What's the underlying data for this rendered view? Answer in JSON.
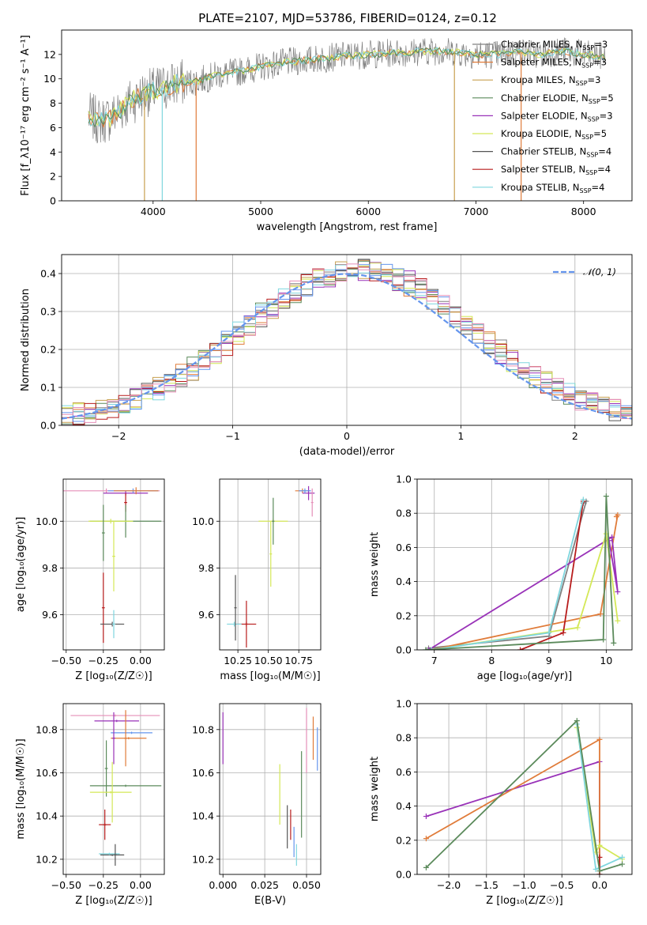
{
  "figure": {
    "title": "PLATE=2107, MJD=53786, FIBERID=0124, z=0.12"
  },
  "colors": {
    "chabrier_miles": "#808080",
    "salpeter_miles": "#e07b39",
    "kroupa_miles": "#c8a050",
    "chabrier_elodie": "#5b8a5b",
    "salpeter_elodie": "#9932b8",
    "kroupa_elodie": "#d4e857",
    "chabrier_stelib": "#555555",
    "salpeter_stelib": "#b81c1c",
    "kroupa_stelib": "#7fd6de",
    "blue": "#6495ed",
    "pink": "#e58fb8"
  },
  "chart_data": [
    {
      "id": "spectrum",
      "type": "line",
      "xlabel": "wavelength [Angstrom, rest frame]",
      "ylabel": "Flux [f_λ10⁻¹⁷ erg cm⁻² s⁻¹ A⁻¹]",
      "xlim": [
        3150,
        8450
      ],
      "ylim": [
        0,
        14
      ],
      "xticks": [
        4000,
        5000,
        6000,
        7000,
        8000
      ],
      "yticks": [
        0,
        2,
        4,
        6,
        8,
        10,
        12
      ],
      "x_range": [
        3400,
        8200
      ],
      "anchor_x": [
        3400,
        3500,
        3600,
        3700,
        3800,
        3900,
        4000,
        4100,
        4200,
        4300,
        4400,
        4600,
        4800,
        5000,
        5200,
        5400,
        5600,
        5800,
        6000,
        6200,
        6400,
        6600,
        6800,
        7000,
        7200,
        7400,
        7600,
        7800,
        8000,
        8200
      ],
      "anchor_y": [
        7.0,
        6.5,
        6.8,
        7.5,
        8.2,
        8.7,
        9.0,
        9.3,
        9.6,
        9.7,
        9.8,
        10.3,
        10.6,
        11.0,
        11.3,
        11.5,
        11.7,
        11.9,
        12.0,
        12.1,
        12.2,
        12.3,
        12.2,
        12.0,
        12.0,
        12.2,
        12.0,
        12.3,
        12.0,
        11.8
      ],
      "legend": [
        {
          "label": "Chabrier MILES, N",
          "sub": "SSP",
          "eq": "=3",
          "color": "#808080"
        },
        {
          "label": "Salpeter MILES, N",
          "sub": "SSP",
          "eq": "=3",
          "color": "#e07b39"
        },
        {
          "label": "Kroupa MILES, N",
          "sub": "SSP",
          "eq": "=3",
          "color": "#c8a050"
        },
        {
          "label": "Chabrier ELODIE, N",
          "sub": "SSP",
          "eq": "=5",
          "color": "#5b8a5b"
        },
        {
          "label": "Salpeter ELODIE, N",
          "sub": "SSP",
          "eq": "=3",
          "color": "#9932b8"
        },
        {
          "label": "Kroupa ELODIE, N",
          "sub": "SSP",
          "eq": "=5",
          "color": "#d4e857"
        },
        {
          "label": "Chabrier STELIB, N",
          "sub": "SSP",
          "eq": "=4",
          "color": "#555555"
        },
        {
          "label": "Salpeter STELIB, N",
          "sub": "SSP",
          "eq": "=4",
          "color": "#b81c1c"
        },
        {
          "label": "Kroupa STELIB, N",
          "sub": "SSP",
          "eq": "=4",
          "color": "#7fd6de"
        }
      ],
      "spikes": [
        {
          "x": 3920,
          "color": "#c8a050"
        },
        {
          "x": 4085,
          "color": "#7fd6de"
        },
        {
          "x": 4400,
          "color": "#e07b39"
        },
        {
          "x": 6800,
          "color": "#c8a050"
        },
        {
          "x": 7420,
          "color": "#e07b39"
        }
      ]
    },
    {
      "id": "residuals",
      "type": "line",
      "xlabel": "(data-model)/error",
      "ylabel": "Normed distribution",
      "xlim": [
        -2.5,
        2.5
      ],
      "ylim": [
        0,
        0.45
      ],
      "xticks": [
        -2,
        -1,
        0,
        1,
        2
      ],
      "yticks": [
        0.0,
        0.1,
        0.2,
        0.3,
        0.4
      ],
      "legend": [
        {
          "label": "𝒩(0, 1)",
          "color": "#6495ed"
        }
      ],
      "bin_width": 0.1,
      "series_colors": [
        "#808080",
        "#e07b39",
        "#c8a050",
        "#5b8a5b",
        "#9932b8",
        "#d4e857",
        "#555555",
        "#b81c1c",
        "#7fd6de",
        "#6495ed",
        "#e58fb8"
      ]
    },
    {
      "id": "age_vs_Z",
      "type": "scatter",
      "xlabel": "Z [log₁₀(Z/Z☉)]",
      "ylabel": "age  [log₁₀(age/yr)]",
      "xlim": [
        -0.52,
        0.16
      ],
      "ylim": [
        9.45,
        10.18
      ],
      "xticks": [
        -0.5,
        -0.25,
        0.0
      ],
      "ytick_values": [
        9.6,
        9.8,
        10.0
      ],
      "points": [
        {
          "x": -0.23,
          "y": 10.13,
          "xerr": 0.36,
          "yerr": 0.01,
          "color": "#e58fb8"
        },
        {
          "x": -0.1,
          "y": 10.12,
          "xerr": 0.15,
          "yerr": 0.01,
          "color": "#9932b8"
        },
        {
          "x": -0.05,
          "y": 10.13,
          "xerr": 0.17,
          "yerr": 0.01,
          "color": "#6495ed"
        },
        {
          "x": -0.03,
          "y": 10.13,
          "xerr": 0.15,
          "yerr": 0.015,
          "color": "#e07b39"
        },
        {
          "x": -0.1,
          "y": 10.08,
          "xerr": 0.01,
          "yerr": 0.04,
          "color": "#b81c1c"
        },
        {
          "x": -0.1,
          "y": 10.0,
          "xerr": 0.24,
          "yerr": 0.07,
          "color": "#5b8a5b"
        },
        {
          "x": -0.2,
          "y": 10.0,
          "xerr": 0.15,
          "yerr": 0.01,
          "color": "#d4e857"
        },
        {
          "x": -0.25,
          "y": 9.95,
          "xerr": 0.01,
          "yerr": 0.12,
          "color": "#5b8a5b"
        },
        {
          "x": -0.18,
          "y": 9.85,
          "xerr": 0.01,
          "yerr": 0.15,
          "color": "#d4e857"
        },
        {
          "x": -0.25,
          "y": 9.63,
          "xerr": 0.01,
          "yerr": 0.15,
          "color": "#b81c1c"
        },
        {
          "x": -0.19,
          "y": 9.56,
          "xerr": 0.08,
          "yerr": 0.01,
          "color": "#555555"
        },
        {
          "x": -0.18,
          "y": 9.56,
          "xerr": 0.01,
          "yerr": 0.06,
          "color": "#7fd6de"
        }
      ]
    },
    {
      "id": "age_vs_mass",
      "type": "scatter",
      "xlabel": "mass [log₁₀(M/M☉)]",
      "ylabel": "",
      "xlim": [
        10.1,
        10.93
      ],
      "ylim": [
        9.45,
        10.18
      ],
      "xticks": [
        10.25,
        10.5,
        10.75
      ],
      "ytick_values": [
        9.6,
        9.8,
        10.0
      ],
      "points": [
        {
          "x": 10.78,
          "y": 10.13,
          "xerr": 0.06,
          "yerr": 0.01,
          "color": "#e07b39"
        },
        {
          "x": 10.83,
          "y": 10.12,
          "xerr": 0.05,
          "yerr": 0.03,
          "color": "#9932b8"
        },
        {
          "x": 10.86,
          "y": 10.08,
          "xerr": 0.01,
          "yerr": 0.06,
          "color": "#e58fb8"
        },
        {
          "x": 10.8,
          "y": 10.13,
          "xerr": 0.05,
          "yerr": 0.01,
          "color": "#6495ed"
        },
        {
          "x": 10.54,
          "y": 10.0,
          "xerr": 0.12,
          "yerr": 0.01,
          "color": "#d4e857"
        },
        {
          "x": 10.54,
          "y": 10.0,
          "xerr": 0.01,
          "yerr": 0.1,
          "color": "#5b8a5b"
        },
        {
          "x": 10.52,
          "y": 9.86,
          "xerr": 0.01,
          "yerr": 0.14,
          "color": "#d4e857"
        },
        {
          "x": 10.32,
          "y": 9.56,
          "xerr": 0.08,
          "yerr": 0.01,
          "color": "#b81c1c"
        },
        {
          "x": 10.32,
          "y": 9.56,
          "xerr": 0.01,
          "yerr": 0.1,
          "color": "#b81c1c"
        },
        {
          "x": 10.22,
          "y": 9.56,
          "xerr": 0.06,
          "yerr": 0.01,
          "color": "#7fd6de"
        },
        {
          "x": 10.23,
          "y": 9.63,
          "xerr": 0.01,
          "yerr": 0.14,
          "color": "#555555"
        }
      ]
    },
    {
      "id": "mw_vs_age",
      "type": "line",
      "xlabel": "age  [log₁₀(age/yr)]",
      "ylabel": "mass weight",
      "xlim": [
        6.7,
        10.45
      ],
      "ylim": [
        0,
        1
      ],
      "xticks": [
        7,
        8,
        9,
        10
      ],
      "yticks": [
        0.0,
        0.2,
        0.4,
        0.6,
        0.8,
        1.0
      ],
      "series": [
        {
          "name": "Chabrier MILES",
          "color": "#808080",
          "x": [
            6.9,
            9.0,
            9.65,
            9.6
          ],
          "y": [
            0.01,
            0.08,
            0.87,
            0.86
          ]
        },
        {
          "name": "Salpeter MILES",
          "color": "#e07b39",
          "x": [
            6.95,
            9.9,
            10.2,
            10.18
          ],
          "y": [
            0.0,
            0.21,
            0.79,
            0.78
          ]
        },
        {
          "name": "Salpeter ELODIE",
          "color": "#9932b8",
          "x": [
            6.9,
            10.1,
            10.2,
            10.05
          ],
          "y": [
            0.0,
            0.66,
            0.34,
            0.64
          ]
        },
        {
          "name": "Kroupa ELODIE",
          "color": "#d4e857",
          "x": [
            6.95,
            9.5,
            10.0,
            10.2
          ],
          "y": [
            0.0,
            0.13,
            0.68,
            0.17
          ]
        },
        {
          "name": "Salpeter STELIB",
          "color": "#b81c1c",
          "x": [
            8.5,
            9.25,
            9.6
          ],
          "y": [
            0.0,
            0.1,
            0.87
          ]
        },
        {
          "name": "Kroupa STELIB",
          "color": "#7fd6de",
          "x": [
            6.95,
            9.0,
            9.6
          ],
          "y": [
            0.0,
            0.1,
            0.88
          ]
        },
        {
          "name": "Chabrier ELODIE",
          "color": "#5b8a5b",
          "x": [
            6.85,
            9.95,
            10.0,
            10.13
          ],
          "y": [
            0.0,
            0.06,
            0.9,
            0.04
          ]
        }
      ]
    },
    {
      "id": "mass_vs_Z",
      "type": "scatter",
      "xlabel": "Z [log₁₀(Z/Z☉)]",
      "ylabel": "mass [log₁₀(M/M☉)]",
      "xlim": [
        -0.52,
        0.16
      ],
      "ylim": [
        10.13,
        10.92
      ],
      "xticks": [
        -0.5,
        -0.25,
        0.0
      ],
      "ytick_values": [
        10.2,
        10.4,
        10.6,
        10.8
      ],
      "points": [
        {
          "x": -0.17,
          "y": 10.865,
          "xerr": 0.3,
          "yerr": 0.005,
          "color": "#e58fb8"
        },
        {
          "x": -0.16,
          "y": 10.84,
          "xerr": 0.15,
          "yerr": 0.005,
          "color": "#9932b8"
        },
        {
          "x": -0.06,
          "y": 10.785,
          "xerr": 0.14,
          "yerr": 0.005,
          "color": "#6495ed"
        },
        {
          "x": -0.08,
          "y": 10.76,
          "xerr": 0.12,
          "yerr": 0.005,
          "color": "#e07b39"
        },
        {
          "x": -0.18,
          "y": 10.76,
          "xerr": 0.01,
          "yerr": 0.12,
          "color": "#9932b8"
        },
        {
          "x": -0.1,
          "y": 10.76,
          "xerr": 0.01,
          "yerr": 0.13,
          "color": "#e07b39"
        },
        {
          "x": -0.1,
          "y": 10.54,
          "xerr": 0.24,
          "yerr": 0.005,
          "color": "#5b8a5b"
        },
        {
          "x": -0.23,
          "y": 10.62,
          "xerr": 0.01,
          "yerr": 0.13,
          "color": "#5b8a5b"
        },
        {
          "x": -0.2,
          "y": 10.51,
          "xerr": 0.14,
          "yerr": 0.005,
          "color": "#d4e857"
        },
        {
          "x": -0.19,
          "y": 10.51,
          "xerr": 0.01,
          "yerr": 0.14,
          "color": "#d4e857"
        },
        {
          "x": -0.24,
          "y": 10.36,
          "xerr": 0.04,
          "yerr": 0.005,
          "color": "#b81c1c"
        },
        {
          "x": -0.24,
          "y": 10.36,
          "xerr": 0.01,
          "yerr": 0.07,
          "color": "#b81c1c"
        },
        {
          "x": -0.19,
          "y": 10.22,
          "xerr": 0.08,
          "yerr": 0.005,
          "color": "#555555"
        },
        {
          "x": -0.21,
          "y": 10.225,
          "xerr": 0.07,
          "yerr": 0.005,
          "color": "#7fd6de"
        },
        {
          "x": -0.17,
          "y": 10.22,
          "xerr": 0.01,
          "yerr": 0.05,
          "color": "#555555"
        }
      ]
    },
    {
      "id": "mass_vs_EBV",
      "type": "scatter",
      "xlabel": "E(B-V)",
      "ylabel": "",
      "xlim": [
        -0.002,
        0.0585
      ],
      "ylim": [
        10.13,
        10.92
      ],
      "xticks": [
        0.0,
        0.025,
        0.05
      ],
      "xtick_labels": [
        "0.000",
        "0.025",
        "0.050"
      ],
      "ytick_values": [
        10.2,
        10.4,
        10.6,
        10.8
      ],
      "points": [
        {
          "x": 0.0,
          "y": 10.76,
          "xerr": 0.0,
          "yerr": 0.12,
          "color": "#9932b8"
        },
        {
          "x": 0.034,
          "y": 10.5,
          "xerr": 0.0,
          "yerr": 0.14,
          "color": "#d4e857"
        },
        {
          "x": 0.0385,
          "y": 10.35,
          "xerr": 0.0,
          "yerr": 0.1,
          "color": "#555555"
        },
        {
          "x": 0.0405,
          "y": 10.36,
          "xerr": 0.0,
          "yerr": 0.07,
          "color": "#b81c1c"
        },
        {
          "x": 0.0425,
          "y": 10.28,
          "xerr": 0.0,
          "yerr": 0.07,
          "color": "#6495ed"
        },
        {
          "x": 0.044,
          "y": 10.22,
          "xerr": 0.0,
          "yerr": 0.05,
          "color": "#7fd6de"
        },
        {
          "x": 0.047,
          "y": 10.5,
          "xerr": 0.0,
          "yerr": 0.2,
          "color": "#5b8a5b"
        },
        {
          "x": 0.05,
          "y": 10.75,
          "xerr": 0.0,
          "yerr": 0.15,
          "color": "#e58fb8"
        },
        {
          "x": 0.054,
          "y": 10.76,
          "xerr": 0.0,
          "yerr": 0.1,
          "color": "#e07b39"
        },
        {
          "x": 0.0565,
          "y": 10.71,
          "xerr": 0.0,
          "yerr": 0.1,
          "color": "#6495ed"
        }
      ]
    },
    {
      "id": "mw_vs_Z",
      "type": "line",
      "xlabel": "Z [log₁₀(Z/Z☉)]",
      "ylabel": "mass weight",
      "xlim": [
        -2.42,
        0.43
      ],
      "ylim": [
        0,
        1
      ],
      "xticks": [
        -2.0,
        -1.5,
        -1.0,
        -0.5,
        0.0
      ],
      "yticks": [
        0.0,
        0.2,
        0.4,
        0.6,
        0.8,
        1.0
      ],
      "series": [
        {
          "name": "Salpeter ELODIE",
          "color": "#9932b8",
          "x": [
            -2.3,
            0.0,
            0.0
          ],
          "y": [
            0.34,
            0.66,
            0.0
          ]
        },
        {
          "name": "Salpeter MILES",
          "color": "#e07b39",
          "x": [
            -2.3,
            0.0,
            0.0
          ],
          "y": [
            0.21,
            0.79,
            0.0
          ]
        },
        {
          "name": "Kroupa ELODIE",
          "color": "#d4e857",
          "x": [
            -0.3,
            -0.05,
            0.0,
            0.3
          ],
          "y": [
            0.86,
            0.13,
            0.17,
            0.09
          ]
        },
        {
          "name": "Kroupa STELIB",
          "color": "#7fd6de",
          "x": [
            -0.3,
            -0.05,
            0.3
          ],
          "y": [
            0.88,
            0.03,
            0.1
          ]
        },
        {
          "name": "Salpeter STELIB",
          "color": "#b81c1c",
          "x": [
            0.0,
            0.0
          ],
          "y": [
            0.1,
            0.0
          ]
        },
        {
          "name": "Chabrier ELODIE",
          "color": "#5b8a5b",
          "x": [
            -2.3,
            -0.3,
            0.0,
            0.3
          ],
          "y": [
            0.04,
            0.9,
            0.02,
            0.06
          ]
        }
      ]
    }
  ]
}
